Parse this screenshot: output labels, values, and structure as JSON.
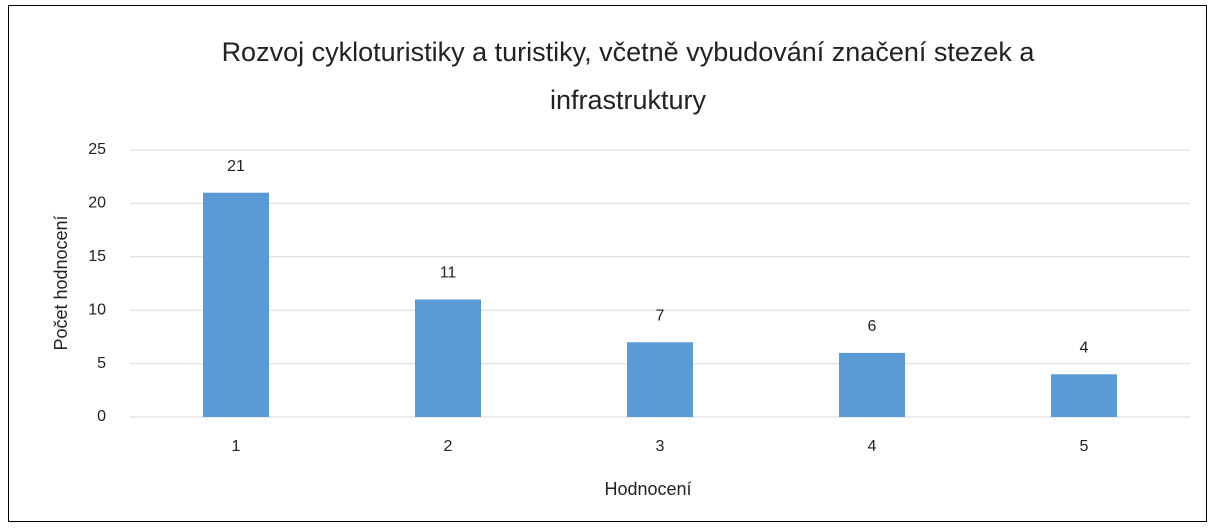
{
  "chart_data": {
    "type": "bar",
    "title": "Rozvoj cykloturistiky a turistiky, včetně vybudování značení stezek a infrastruktury",
    "x_label": "Hodnocení",
    "y_label": "Počet hodnocení",
    "categories": [
      "1",
      "2",
      "3",
      "4",
      "5"
    ],
    "values": [
      21,
      11,
      7,
      6,
      4
    ],
    "color": "#5b9bd5",
    "ylim": [
      0,
      25
    ],
    "yticks": [
      0,
      5,
      10,
      15,
      20,
      25
    ],
    "grid": true
  }
}
